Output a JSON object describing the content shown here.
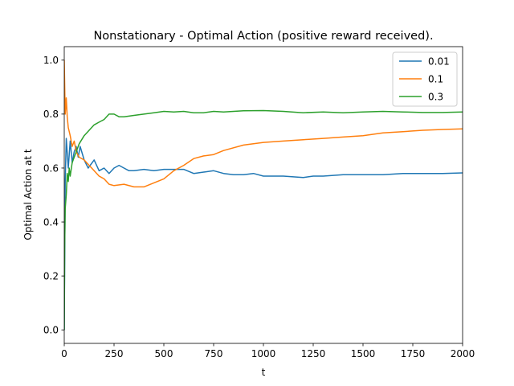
{
  "chart_data": {
    "type": "line",
    "title": "Nonstationary - Optimal Action (positive reward received).",
    "xlabel": "t",
    "ylabel": "Optimal Action at t",
    "xlim": [
      0,
      2000
    ],
    "ylim": [
      -0.05,
      1.05
    ],
    "x_ticks": [
      0,
      250,
      500,
      750,
      1000,
      1250,
      1500,
      1750,
      2000
    ],
    "y_ticks": [
      0.0,
      0.2,
      0.4,
      0.6,
      0.8,
      1.0
    ],
    "x_tick_labels": [
      "0",
      "250",
      "500",
      "750",
      "1000",
      "1250",
      "1500",
      "1750",
      "2000"
    ],
    "y_tick_labels": [
      "0.0",
      "0.2",
      "0.4",
      "0.6",
      "0.8",
      "1.0"
    ],
    "grid": false,
    "legend": "top-right",
    "series": [
      {
        "name": "0.01",
        "color": "#1f77b4",
        "x": [
          0,
          5,
          10,
          20,
          30,
          40,
          50,
          60,
          70,
          80,
          100,
          120,
          150,
          175,
          200,
          225,
          250,
          275,
          300,
          325,
          350,
          400,
          450,
          500,
          550,
          600,
          650,
          700,
          750,
          800,
          850,
          900,
          950,
          1000,
          1100,
          1200,
          1250,
          1300,
          1400,
          1500,
          1600,
          1700,
          1750,
          1800,
          1900,
          2000
        ],
        "values": [
          0.0,
          0.55,
          0.71,
          0.6,
          0.7,
          0.62,
          0.66,
          0.68,
          0.64,
          0.68,
          0.63,
          0.6,
          0.63,
          0.59,
          0.6,
          0.58,
          0.6,
          0.61,
          0.6,
          0.59,
          0.59,
          0.595,
          0.59,
          0.595,
          0.595,
          0.595,
          0.58,
          0.585,
          0.59,
          0.58,
          0.575,
          0.575,
          0.58,
          0.57,
          0.57,
          0.565,
          0.57,
          0.57,
          0.575,
          0.575,
          0.575,
          0.58,
          0.58,
          0.58,
          0.58,
          0.582
        ]
      },
      {
        "name": "0.1",
        "color": "#ff7f0e",
        "x": [
          0,
          5,
          10,
          15,
          20,
          30,
          40,
          50,
          60,
          75,
          100,
          125,
          150,
          175,
          200,
          225,
          250,
          300,
          350,
          400,
          450,
          500,
          550,
          600,
          650,
          700,
          750,
          800,
          900,
          1000,
          1100,
          1200,
          1300,
          1400,
          1500,
          1600,
          1700,
          1800,
          1900,
          2000
        ],
        "values": [
          1.0,
          0.8,
          0.86,
          0.79,
          0.75,
          0.72,
          0.68,
          0.7,
          0.66,
          0.64,
          0.63,
          0.61,
          0.59,
          0.57,
          0.56,
          0.54,
          0.535,
          0.54,
          0.53,
          0.53,
          0.545,
          0.56,
          0.59,
          0.61,
          0.635,
          0.645,
          0.65,
          0.665,
          0.685,
          0.695,
          0.7,
          0.705,
          0.71,
          0.715,
          0.72,
          0.73,
          0.735,
          0.74,
          0.743,
          0.745
        ]
      },
      {
        "name": "0.3",
        "color": "#2ca02c",
        "x": [
          0,
          2,
          5,
          10,
          15,
          20,
          25,
          30,
          40,
          50,
          60,
          75,
          100,
          125,
          150,
          175,
          200,
          225,
          250,
          275,
          300,
          350,
          400,
          450,
          500,
          550,
          600,
          650,
          700,
          750,
          800,
          900,
          1000,
          1100,
          1200,
          1300,
          1400,
          1500,
          1600,
          1700,
          1800,
          1900,
          2000
        ],
        "values": [
          0.0,
          0.3,
          0.45,
          0.5,
          0.58,
          0.55,
          0.6,
          0.57,
          0.62,
          0.64,
          0.66,
          0.69,
          0.72,
          0.74,
          0.76,
          0.77,
          0.78,
          0.8,
          0.8,
          0.79,
          0.79,
          0.795,
          0.8,
          0.805,
          0.81,
          0.808,
          0.81,
          0.805,
          0.805,
          0.81,
          0.808,
          0.812,
          0.813,
          0.81,
          0.805,
          0.808,
          0.805,
          0.808,
          0.81,
          0.808,
          0.806,
          0.806,
          0.808
        ]
      }
    ]
  }
}
